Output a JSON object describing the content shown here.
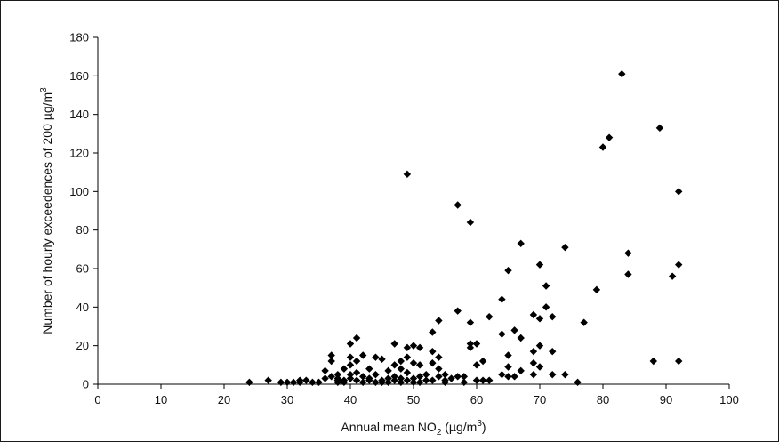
{
  "chart_data": {
    "type": "scatter",
    "title": "",
    "xlabel": {
      "main": "Annual mean NO",
      "sub": "2",
      "unit_pre": " (µg/m",
      "unit_sup": "3",
      "unit_post": ")"
    },
    "ylabel": {
      "main": "Number of hourly exceedences of 200 µg/m",
      "sup": "3"
    },
    "xlim": [
      0,
      100
    ],
    "ylim": [
      0,
      180
    ],
    "xticks": [
      0,
      10,
      20,
      30,
      40,
      50,
      60,
      70,
      80,
      90,
      100
    ],
    "yticks": [
      0,
      20,
      40,
      60,
      80,
      100,
      120,
      140,
      160,
      180
    ],
    "grid": false,
    "marker": "diamond",
    "marker_color": "#000000",
    "points": [
      [
        24,
        1
      ],
      [
        27,
        2
      ],
      [
        29,
        1
      ],
      [
        30,
        1
      ],
      [
        31,
        1
      ],
      [
        32,
        2
      ],
      [
        32,
        1
      ],
      [
        33,
        2
      ],
      [
        34,
        1
      ],
      [
        35,
        1
      ],
      [
        36,
        3
      ],
      [
        36,
        7
      ],
      [
        37,
        12
      ],
      [
        37,
        15
      ],
      [
        37,
        4
      ],
      [
        38,
        2
      ],
      [
        38,
        5
      ],
      [
        38,
        1
      ],
      [
        38,
        3
      ],
      [
        39,
        8
      ],
      [
        39,
        2
      ],
      [
        39,
        1
      ],
      [
        40,
        21
      ],
      [
        40,
        14
      ],
      [
        40,
        3
      ],
      [
        40,
        5
      ],
      [
        40,
        10
      ],
      [
        41,
        24
      ],
      [
        41,
        12
      ],
      [
        41,
        2
      ],
      [
        41,
        6
      ],
      [
        42,
        15
      ],
      [
        42,
        4
      ],
      [
        42,
        1
      ],
      [
        43,
        3
      ],
      [
        43,
        8
      ],
      [
        43,
        2
      ],
      [
        44,
        1
      ],
      [
        44,
        14
      ],
      [
        44,
        5
      ],
      [
        45,
        13
      ],
      [
        45,
        2
      ],
      [
        45,
        1
      ],
      [
        46,
        3
      ],
      [
        46,
        7
      ],
      [
        46,
        1
      ],
      [
        47,
        21
      ],
      [
        47,
        10
      ],
      [
        47,
        4
      ],
      [
        47,
        2
      ],
      [
        48,
        12
      ],
      [
        48,
        8
      ],
      [
        48,
        3
      ],
      [
        48,
        1
      ],
      [
        49,
        109
      ],
      [
        49,
        14
      ],
      [
        49,
        19
      ],
      [
        49,
        6
      ],
      [
        49,
        2
      ],
      [
        50,
        20
      ],
      [
        50,
        11
      ],
      [
        50,
        3
      ],
      [
        50,
        1
      ],
      [
        51,
        19
      ],
      [
        51,
        10
      ],
      [
        51,
        4
      ],
      [
        51,
        1
      ],
      [
        52,
        5
      ],
      [
        52,
        2
      ],
      [
        53,
        27
      ],
      [
        53,
        17
      ],
      [
        53,
        11
      ],
      [
        53,
        2
      ],
      [
        54,
        33
      ],
      [
        54,
        14
      ],
      [
        54,
        8
      ],
      [
        54,
        4
      ],
      [
        55,
        5
      ],
      [
        55,
        2
      ],
      [
        55,
        1
      ],
      [
        56,
        3
      ],
      [
        57,
        93
      ],
      [
        57,
        38
      ],
      [
        57,
        4
      ],
      [
        58,
        1
      ],
      [
        58,
        4
      ],
      [
        59,
        84
      ],
      [
        59,
        32
      ],
      [
        59,
        21
      ],
      [
        59,
        19
      ],
      [
        60,
        21
      ],
      [
        60,
        10
      ],
      [
        60,
        2
      ],
      [
        61,
        12
      ],
      [
        61,
        2
      ],
      [
        62,
        35
      ],
      [
        62,
        2
      ],
      [
        64,
        44
      ],
      [
        64,
        26
      ],
      [
        64,
        5
      ],
      [
        65,
        59
      ],
      [
        65,
        15
      ],
      [
        65,
        9
      ],
      [
        65,
        4
      ],
      [
        66,
        28
      ],
      [
        66,
        4
      ],
      [
        67,
        73
      ],
      [
        67,
        24
      ],
      [
        67,
        7
      ],
      [
        69,
        36
      ],
      [
        69,
        11
      ],
      [
        69,
        5
      ],
      [
        69,
        17
      ],
      [
        70,
        62
      ],
      [
        70,
        34
      ],
      [
        70,
        20
      ],
      [
        70,
        9
      ],
      [
        71,
        51
      ],
      [
        71,
        40
      ],
      [
        72,
        35
      ],
      [
        72,
        17
      ],
      [
        72,
        5
      ],
      [
        74,
        71
      ],
      [
        74,
        5
      ],
      [
        76,
        1
      ],
      [
        77,
        32
      ],
      [
        79,
        49
      ],
      [
        80,
        123
      ],
      [
        81,
        128
      ],
      [
        83,
        161
      ],
      [
        84,
        68
      ],
      [
        84,
        57
      ],
      [
        88,
        12
      ],
      [
        89,
        133
      ],
      [
        91,
        56
      ],
      [
        92,
        100
      ],
      [
        92,
        62
      ],
      [
        92,
        12
      ]
    ]
  }
}
